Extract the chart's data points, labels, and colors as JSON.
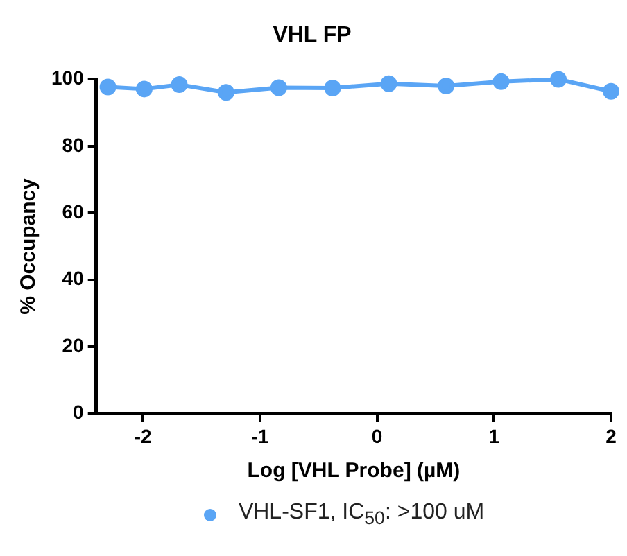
{
  "chart_data": {
    "type": "line",
    "title": "VHL FP",
    "xlabel": "Log [VHL Probe] (µM)",
    "ylabel": "% Occupancy",
    "x": [
      -2.3,
      -1.99,
      -1.69,
      -1.29,
      -0.84,
      -0.38,
      0.1,
      0.59,
      1.06,
      1.55,
      2.0
    ],
    "series": [
      {
        "name": "VHL-SF1, IC$_{50}$: >100 uM",
        "color": "#5aa5f5",
        "values": [
          97.7,
          97.1,
          98.4,
          96.1,
          97.5,
          97.4,
          98.7,
          98.0,
          99.3,
          100,
          96.4
        ]
      }
    ],
    "xlim": [
      -2.4,
      2
    ],
    "xticks": [
      -2,
      -1,
      0,
      1,
      2
    ],
    "ylim": [
      0,
      100
    ],
    "yticks": [
      0,
      20,
      40,
      60,
      80,
      100
    ],
    "grid": false,
    "legend": "bottom",
    "marker": "circle",
    "line_style": "solid"
  }
}
